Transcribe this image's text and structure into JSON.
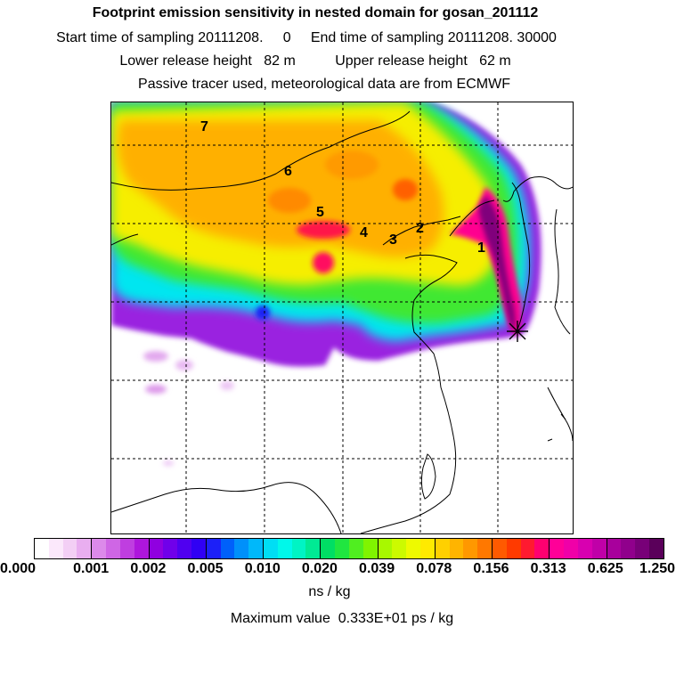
{
  "header": {
    "title": "Footprint emission sensitivity in nested domain for gosan_201112",
    "sampling": "Start time of sampling 20111208.     0     End time of sampling 20111208. 30000",
    "release": "Lower release height   82 m          Upper release height   62 m",
    "tracer": "Passive tracer used, meteorological data are from ECMWF"
  },
  "map": {
    "site_labels": [
      "1",
      "2",
      "3",
      "4",
      "5",
      "6",
      "7"
    ],
    "receptor_marker": "star-icon"
  },
  "colorbar": {
    "tick_labels": [
      "0.000",
      "0.001",
      "0.002",
      "0.005",
      "0.010",
      "0.020",
      "0.039",
      "0.078",
      "0.156",
      "0.313",
      "0.625",
      "1.250"
    ],
    "colors": [
      "#ffffff",
      "#fbe8fb",
      "#f3cff5",
      "#e9aef0",
      "#dc8aea",
      "#cf66e5",
      "#bf3ee0",
      "#ae16dc",
      "#9000e0",
      "#7000ea",
      "#5000f0",
      "#3000f4",
      "#1c20f8",
      "#0060fa",
      "#0090fa",
      "#00b8fa",
      "#00def4",
      "#00f8ea",
      "#00f4c4",
      "#00ea94",
      "#00de64",
      "#20e640",
      "#50ee20",
      "#80f400",
      "#a8f800",
      "#ccfa00",
      "#eefa00",
      "#ffea00",
      "#ffd000",
      "#ffb400",
      "#ff9800",
      "#ff7800",
      "#ff5a00",
      "#ff3a00",
      "#ff1a30",
      "#ff0070",
      "#ff0098",
      "#f000a8",
      "#d800b0",
      "#c000a8",
      "#a8009c",
      "#90008c",
      "#780078",
      "#5a005a"
    ],
    "unit": "ns / kg",
    "max_value": "Maximum value  0.333E+01 ps / kg"
  }
}
